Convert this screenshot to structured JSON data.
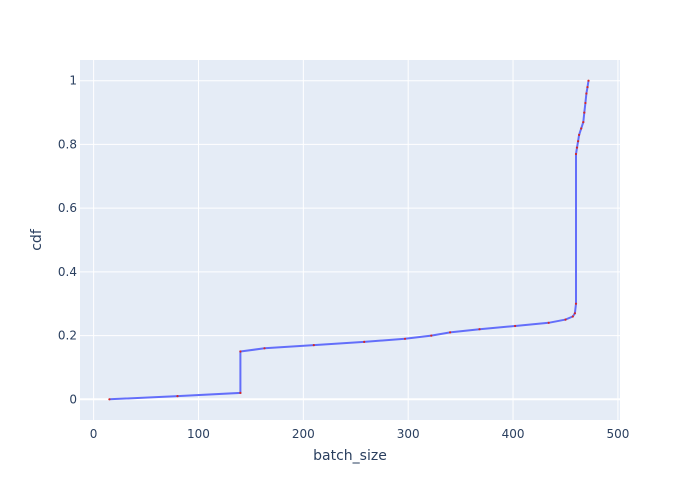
{
  "chart_data": {
    "type": "line",
    "xlabel": "batch_size",
    "ylabel": "cdf",
    "xlim": [
      -13,
      502
    ],
    "ylim": [
      -0.065,
      1.065
    ],
    "x_ticks": [
      0,
      100,
      200,
      300,
      400,
      500
    ],
    "y_ticks": [
      0,
      0.2,
      0.4,
      0.6,
      0.8,
      1
    ],
    "x_tick_labels": [
      "0",
      "100",
      "200",
      "300",
      "400",
      "500"
    ],
    "y_tick_labels": [
      "0",
      "0.2",
      "0.4",
      "0.6",
      "0.8",
      "1"
    ],
    "grid": true,
    "series": [
      {
        "x": [
          15,
          80,
          140,
          140,
          163,
          210,
          258,
          297,
          322,
          340,
          368,
          402,
          434,
          450,
          457,
          459,
          460,
          460,
          461,
          462,
          463,
          465,
          467,
          468,
          469,
          470,
          471,
          472
        ],
        "y": [
          0,
          0.01,
          0.02,
          0.15,
          0.16,
          0.17,
          0.18,
          0.19,
          0.2,
          0.21,
          0.22,
          0.23,
          0.24,
          0.25,
          0.26,
          0.27,
          0.3,
          0.77,
          0.79,
          0.81,
          0.83,
          0.85,
          0.87,
          0.9,
          0.93,
          0.96,
          0.98,
          1.0
        ]
      }
    ],
    "colors": {
      "line": "#636efa",
      "marker": "#d62728",
      "plot_bg": "#e5ecf6",
      "grid": "#ffffff"
    }
  }
}
